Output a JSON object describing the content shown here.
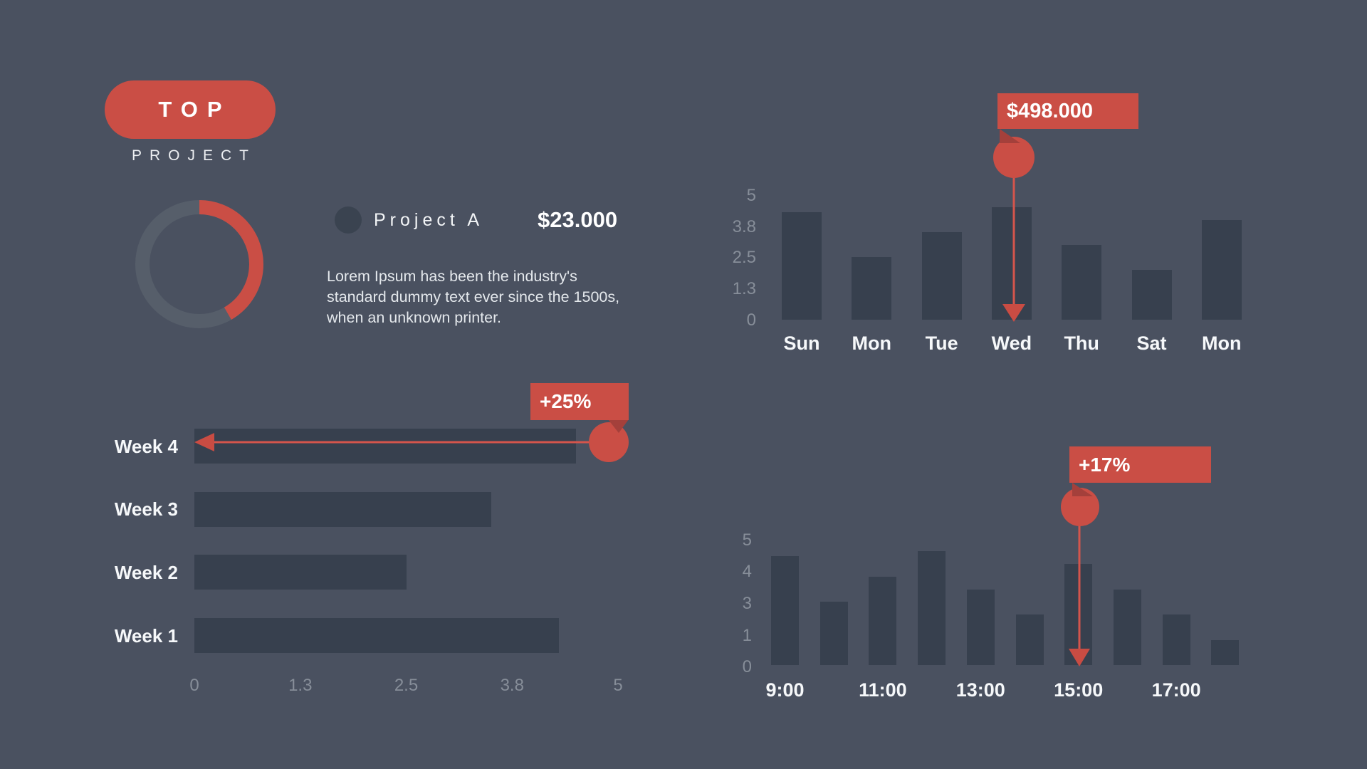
{
  "badge": {
    "label": "TOP",
    "sublabel": "PROJECT"
  },
  "donut": {
    "percent": 42,
    "arc_degrees": 150,
    "value_color": "#CA4E45",
    "track_color": "#565E6A"
  },
  "legend": {
    "name": "Project A",
    "value": "$23.000"
  },
  "description": "Lorem Ipsum has been the industry's standard dummy text ever since the 1500s, when an unknown printer.",
  "colors": {
    "background": "#4A5160",
    "bar": "#37404E",
    "accent_red": "#CA4E45",
    "notch_red": "#A4403B",
    "arrow_red": "#D4554C",
    "tick_gray": "#878E99",
    "text_white": "#FFFFFF"
  },
  "chart_data": [
    {
      "id": "weekly",
      "type": "bar",
      "orientation": "horizontal",
      "categories": [
        "Week 4",
        "Week 3",
        "Week 2",
        "Week 1"
      ],
      "values": [
        4.5,
        3.5,
        2.5,
        4.3
      ],
      "xticks": [
        "0",
        "1.3",
        "2.5",
        "3.8",
        "5"
      ],
      "xlim": [
        0,
        5
      ],
      "grid": false,
      "annotation": {
        "label": "+25%",
        "target": "Week 4"
      }
    },
    {
      "id": "daily",
      "type": "bar",
      "orientation": "vertical",
      "categories": [
        "Sun",
        "Mon",
        "Tue",
        "Wed",
        "Thu",
        "Sat",
        "Mon"
      ],
      "values": [
        4.3,
        2.5,
        3.5,
        4.5,
        3.0,
        2.0,
        4.0
      ],
      "yticks": [
        "5",
        "3.8",
        "2.5",
        "1.3",
        "0"
      ],
      "ylim": [
        0,
        5
      ],
      "grid": false,
      "annotation": {
        "label": "$498.000",
        "target": "Wed"
      }
    },
    {
      "id": "hourly",
      "type": "bar",
      "orientation": "vertical",
      "categories": [
        "9:00",
        "",
        "11:00",
        "",
        "13:00",
        "",
        "15:00",
        "",
        "17:00",
        ""
      ],
      "values": [
        4.3,
        2.5,
        3.5,
        4.5,
        3.0,
        2.0,
        4.0,
        3.0,
        2.0,
        1.0
      ],
      "yticks": [
        "5",
        "4",
        "3",
        "1",
        "0"
      ],
      "ylim": [
        0,
        5
      ],
      "grid": false,
      "annotation": {
        "label": "+17%",
        "target": "15:00"
      }
    }
  ]
}
